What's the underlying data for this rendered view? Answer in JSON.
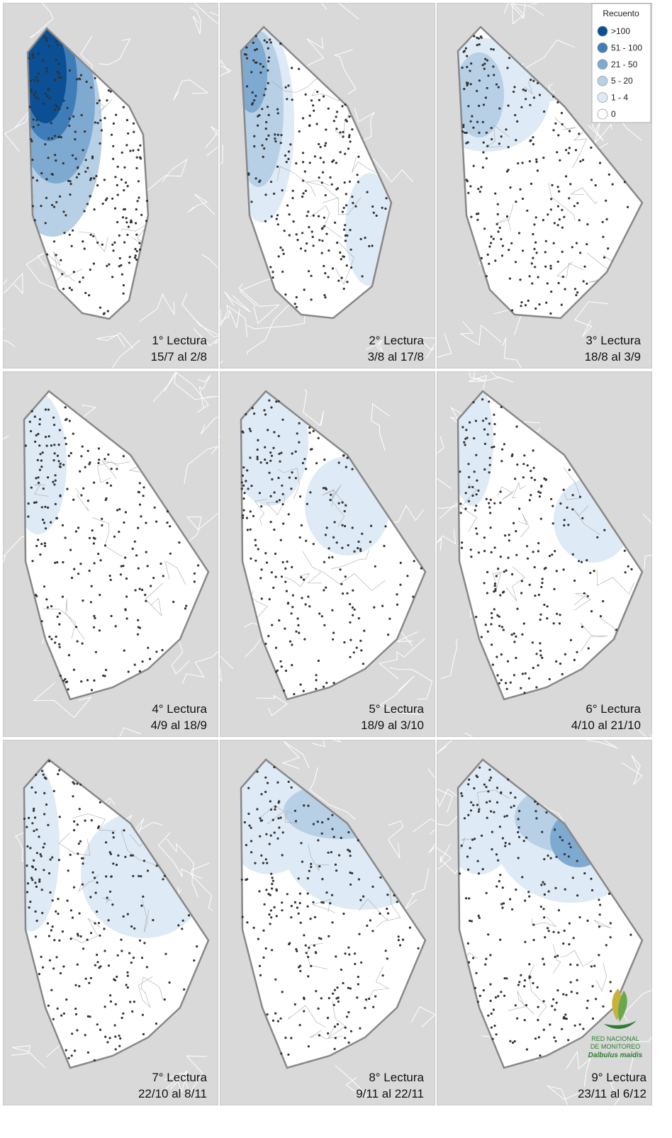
{
  "legend": {
    "title": "Recuento",
    "items": [
      {
        "label": ">100",
        "color": "#0b4f94"
      },
      {
        "label": "51 - 100",
        "color": "#3f7db8"
      },
      {
        "label": "21 - 50",
        "color": "#7ea9d0"
      },
      {
        "label": "5 - 20",
        "color": "#b7d0e6"
      },
      {
        "label": "1 - 4",
        "color": "#deeaf5"
      },
      {
        "label": "0",
        "color": "#ffffff"
      }
    ]
  },
  "panels": [
    {
      "title": "1° Lectura",
      "dates": "15/7 al 2/8"
    },
    {
      "title": "2° Lectura",
      "dates": "3/8 al 17/8"
    },
    {
      "title": "3° Lectura",
      "dates": "18/8 al 3/9"
    },
    {
      "title": "4° Lectura",
      "dates": "4/9 al 18/9"
    },
    {
      "title": "5° Lectura",
      "dates": "18/9 al 3/10"
    },
    {
      "title": "6° Lectura",
      "dates": "4/10 al 21/10"
    },
    {
      "title": "7° Lectura",
      "dates": "22/10  al 8/11"
    },
    {
      "title": "8° Lectura",
      "dates": "9/11 al 22/11"
    },
    {
      "title": "9° Lectura",
      "dates": "23/11 al 6/12"
    }
  ],
  "logo": {
    "line1": "RED NACIONAL",
    "line2": "DE MONITOREO",
    "line3": "Dalbulus maidis"
  }
}
